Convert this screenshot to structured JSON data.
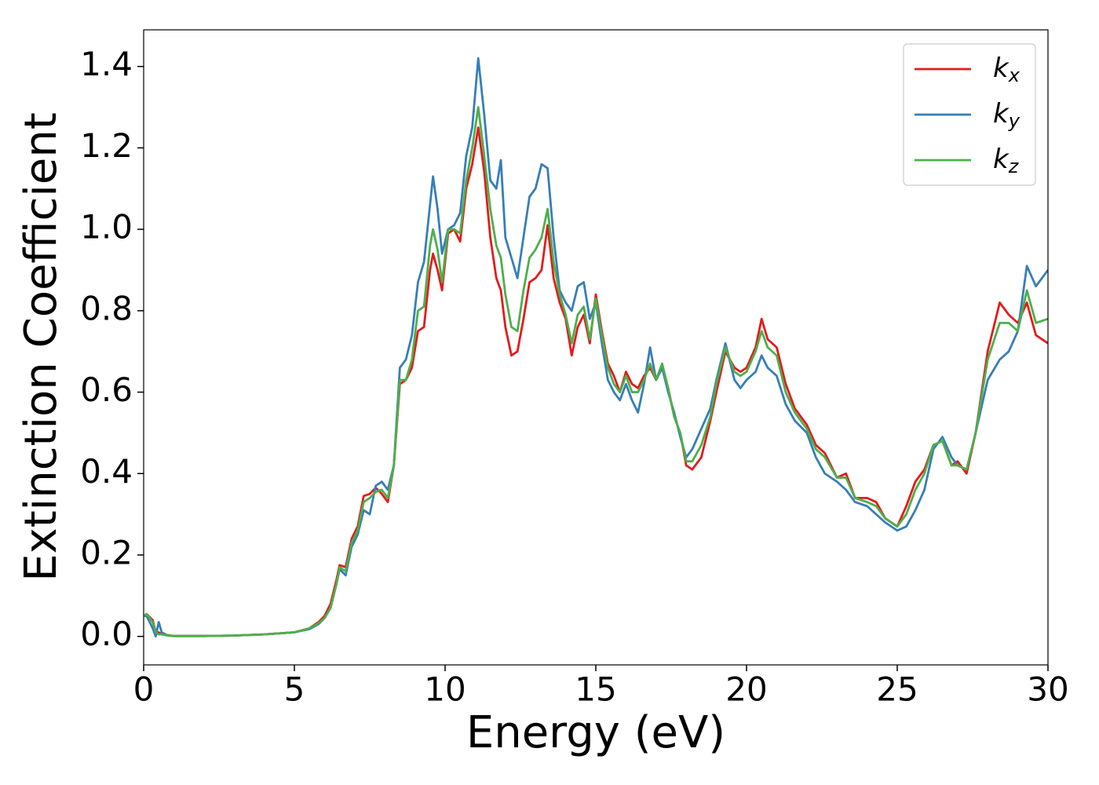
{
  "chart_data": {
    "type": "line",
    "xlabel": "Energy (eV)",
    "ylabel": "Extinction Coefficient",
    "xlim": [
      0,
      30
    ],
    "ylim": [
      -0.07,
      1.49
    ],
    "xticks": [
      0,
      5,
      10,
      15,
      20,
      25,
      30
    ],
    "yticks": [
      {
        "value": 0,
        "label": "0.0"
      },
      0.2,
      0.4,
      0.6,
      0.8,
      {
        "value": 1,
        "label": "1.0"
      },
      1.2,
      1.4
    ],
    "legend": "upper right",
    "x": [
      0,
      0.1,
      0.3,
      0.4,
      0.5,
      0.6,
      0.8,
      1,
      2,
      3,
      4,
      5,
      5.5,
      5.8,
      6.0,
      6.2,
      6.4,
      6.5,
      6.7,
      6.9,
      7.1,
      7.3,
      7.5,
      7.7,
      7.9,
      8.1,
      8.3,
      8.5,
      8.7,
      8.9,
      9.1,
      9.3,
      9.5,
      9.6,
      9.75,
      9.9,
      10.1,
      10.3,
      10.5,
      10.7,
      10.9,
      11.1,
      11.3,
      11.5,
      11.7,
      11.85,
      12.0,
      12.2,
      12.4,
      12.6,
      12.8,
      13.0,
      13.2,
      13.4,
      13.6,
      13.8,
      14.0,
      14.2,
      14.4,
      14.6,
      14.8,
      15.0,
      15.2,
      15.4,
      15.6,
      15.8,
      16.0,
      16.2,
      16.4,
      16.6,
      16.8,
      17.0,
      17.2,
      17.4,
      17.6,
      17.8,
      18.0,
      18.2,
      18.5,
      18.8,
      19.0,
      19.3,
      19.6,
      19.8,
      20.0,
      20.3,
      20.5,
      20.7,
      21.0,
      21.3,
      21.6,
      22.0,
      22.3,
      22.6,
      23.0,
      23.3,
      23.6,
      24.0,
      24.3,
      24.6,
      25.0,
      25.3,
      25.6,
      25.9,
      26.2,
      26.5,
      26.8,
      27.0,
      27.3,
      27.6,
      28.0,
      28.4,
      28.7,
      29.0,
      29.3,
      29.6,
      30.0
    ],
    "series": [
      {
        "name": "k_x",
        "color": "#e41a1c",
        "values": [
          0.05,
          0.055,
          0.04,
          0.01,
          0.01,
          0.005,
          0.003,
          0.001,
          0.001,
          0.002,
          0.005,
          0.01,
          0.02,
          0.035,
          0.05,
          0.08,
          0.14,
          0.175,
          0.17,
          0.24,
          0.27,
          0.345,
          0.35,
          0.365,
          0.35,
          0.33,
          0.42,
          0.62,
          0.63,
          0.66,
          0.75,
          0.76,
          0.9,
          0.94,
          0.9,
          0.85,
          0.99,
          1.0,
          0.97,
          1.1,
          1.16,
          1.25,
          1.14,
          0.98,
          0.88,
          0.85,
          0.76,
          0.69,
          0.7,
          0.78,
          0.87,
          0.88,
          0.9,
          1.01,
          0.88,
          0.82,
          0.78,
          0.69,
          0.76,
          0.79,
          0.72,
          0.84,
          0.75,
          0.67,
          0.64,
          0.6,
          0.65,
          0.62,
          0.61,
          0.64,
          0.66,
          0.63,
          0.66,
          0.61,
          0.54,
          0.5,
          0.42,
          0.41,
          0.44,
          0.53,
          0.6,
          0.7,
          0.66,
          0.65,
          0.66,
          0.71,
          0.78,
          0.73,
          0.71,
          0.62,
          0.56,
          0.52,
          0.47,
          0.45,
          0.39,
          0.4,
          0.34,
          0.34,
          0.33,
          0.29,
          0.27,
          0.32,
          0.38,
          0.41,
          0.47,
          0.48,
          0.42,
          0.43,
          0.4,
          0.5,
          0.7,
          0.82,
          0.79,
          0.77,
          0.82,
          0.74,
          0.72
        ]
      },
      {
        "name": "k_y",
        "color": "#377eb8",
        "values": [
          0.05,
          0.05,
          0.02,
          0.0,
          0.035,
          0.01,
          0.002,
          0.001,
          0.001,
          0.002,
          0.005,
          0.01,
          0.018,
          0.03,
          0.045,
          0.07,
          0.13,
          0.165,
          0.15,
          0.22,
          0.25,
          0.31,
          0.3,
          0.37,
          0.38,
          0.36,
          0.42,
          0.66,
          0.68,
          0.74,
          0.87,
          0.92,
          1.06,
          1.13,
          1.05,
          0.94,
          1.0,
          1.01,
          1.04,
          1.18,
          1.25,
          1.42,
          1.28,
          1.12,
          1.1,
          1.17,
          0.98,
          0.93,
          0.88,
          0.98,
          1.08,
          1.1,
          1.16,
          1.15,
          0.98,
          0.85,
          0.82,
          0.8,
          0.86,
          0.87,
          0.78,
          0.82,
          0.72,
          0.63,
          0.6,
          0.58,
          0.62,
          0.58,
          0.55,
          0.62,
          0.71,
          0.63,
          0.66,
          0.6,
          0.55,
          0.49,
          0.44,
          0.46,
          0.51,
          0.56,
          0.63,
          0.72,
          0.63,
          0.61,
          0.63,
          0.65,
          0.69,
          0.66,
          0.64,
          0.57,
          0.53,
          0.5,
          0.44,
          0.4,
          0.38,
          0.36,
          0.33,
          0.32,
          0.3,
          0.28,
          0.26,
          0.27,
          0.31,
          0.36,
          0.46,
          0.49,
          0.44,
          0.42,
          0.41,
          0.5,
          0.63,
          0.68,
          0.7,
          0.75,
          0.91,
          0.86,
          0.9
        ]
      },
      {
        "name": "k_z",
        "color": "#4daf4a",
        "values": [
          0.05,
          0.055,
          0.035,
          0.01,
          0.005,
          0.005,
          0.002,
          0.001,
          0.001,
          0.002,
          0.005,
          0.01,
          0.02,
          0.032,
          0.045,
          0.07,
          0.13,
          0.17,
          0.16,
          0.23,
          0.26,
          0.33,
          0.34,
          0.355,
          0.36,
          0.34,
          0.42,
          0.63,
          0.63,
          0.68,
          0.8,
          0.81,
          0.96,
          1.0,
          0.95,
          0.87,
          1.0,
          1.0,
          0.99,
          1.12,
          1.2,
          1.3,
          1.18,
          1.05,
          0.96,
          0.93,
          0.84,
          0.76,
          0.75,
          0.85,
          0.93,
          0.95,
          0.98,
          1.05,
          0.92,
          0.84,
          0.79,
          0.72,
          0.79,
          0.81,
          0.73,
          0.83,
          0.74,
          0.66,
          0.62,
          0.6,
          0.64,
          0.6,
          0.6,
          0.63,
          0.67,
          0.63,
          0.67,
          0.61,
          0.54,
          0.5,
          0.43,
          0.43,
          0.47,
          0.54,
          0.62,
          0.71,
          0.65,
          0.64,
          0.65,
          0.7,
          0.75,
          0.71,
          0.69,
          0.6,
          0.55,
          0.51,
          0.46,
          0.44,
          0.39,
          0.39,
          0.34,
          0.33,
          0.32,
          0.29,
          0.27,
          0.3,
          0.36,
          0.4,
          0.47,
          0.48,
          0.42,
          0.42,
          0.41,
          0.5,
          0.68,
          0.77,
          0.77,
          0.75,
          0.85,
          0.77,
          0.78
        ]
      }
    ]
  }
}
